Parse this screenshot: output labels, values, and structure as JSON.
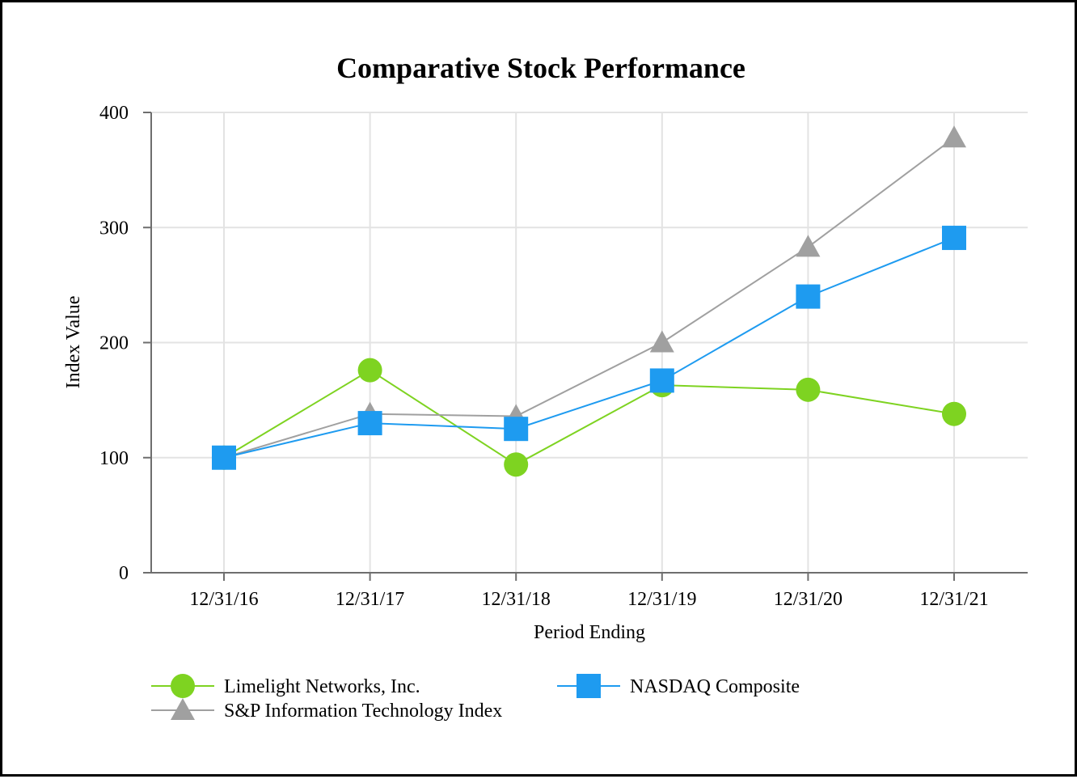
{
  "chart_data": {
    "type": "line",
    "title": "Comparative Stock Performance",
    "xlabel": "Period Ending",
    "ylabel": "Index Value",
    "categories": [
      "12/31/16",
      "12/31/17",
      "12/31/18",
      "12/31/19",
      "12/31/20",
      "12/31/21"
    ],
    "ylim": [
      0,
      400
    ],
    "yticks": [
      0,
      100,
      200,
      300,
      400
    ],
    "grid": true,
    "legend_position": "bottom",
    "series": [
      {
        "name": "Limelight Networks, Inc.",
        "marker": "circle",
        "color": "#7ED321",
        "values": [
          100,
          176,
          94,
          163,
          159,
          138
        ]
      },
      {
        "name": "NASDAQ Composite",
        "marker": "square",
        "color": "#1E9BF0",
        "values": [
          100,
          130,
          125,
          167,
          240,
          291
        ]
      },
      {
        "name": "S&P Information Technology Index",
        "marker": "triangle",
        "color": "#A0A0A0",
        "values": [
          100,
          138,
          136,
          200,
          283,
          378
        ]
      }
    ]
  }
}
